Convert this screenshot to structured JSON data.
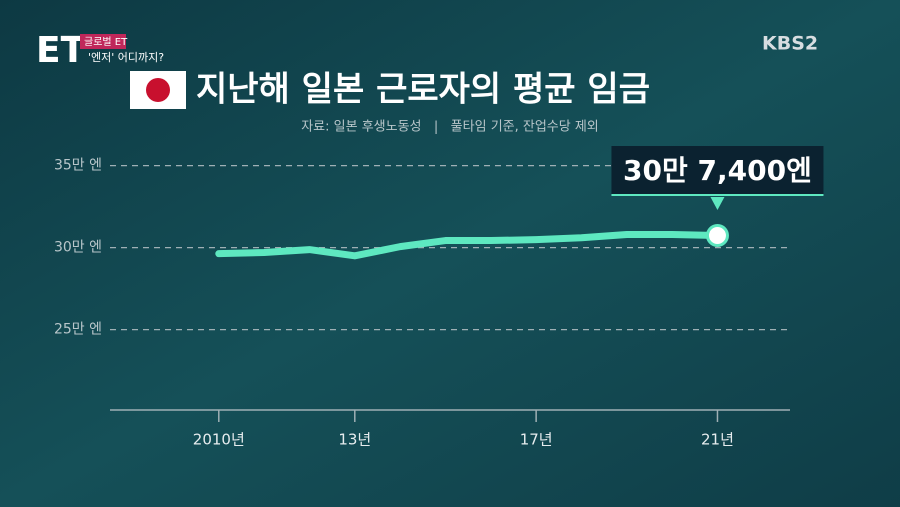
{
  "broadcast": {
    "program_logo": "ET",
    "program": "글로벌 ET",
    "segment": "'엔저' 어디까지?",
    "channel": "KBS2"
  },
  "chart_data": {
    "type": "line",
    "title": "지난해 일본 근로자의 평균 임금",
    "subtitle": "자료: 일본 후생노동성   |   풀타임 기준, 잔업수당 제외",
    "x": [
      2010,
      2011,
      2012,
      2013,
      2014,
      2015,
      2016,
      2017,
      2018,
      2019,
      2020,
      2021
    ],
    "series": [
      {
        "name": "평균 임금",
        "color": "#5ee8c0",
        "values": [
          296300,
          297000,
          298800,
          295000,
          300600,
          304300,
          304300,
          304900,
          306000,
          308000,
          308000,
          307400
        ],
        "value_labels": [
          null,
          null,
          null,
          null,
          null,
          null,
          null,
          null,
          null,
          null,
          null,
          "30만 7,400엔"
        ]
      }
    ],
    "xlim": [
      2007.6,
      2022.6
    ],
    "xticks": [
      {
        "value": 2010,
        "label": "2010년"
      },
      {
        "value": 2013,
        "label": "13년"
      },
      {
        "value": 2017,
        "label": "17년"
      },
      {
        "value": 2021,
        "label": "21년"
      }
    ],
    "ylim": [
      201000,
      360000
    ],
    "yticks": [
      {
        "value": 250000,
        "label": "25만 엔"
      },
      {
        "value": 300000,
        "label": "30만 엔"
      },
      {
        "value": 350000,
        "label": "35만 엔"
      }
    ],
    "grid": true
  }
}
